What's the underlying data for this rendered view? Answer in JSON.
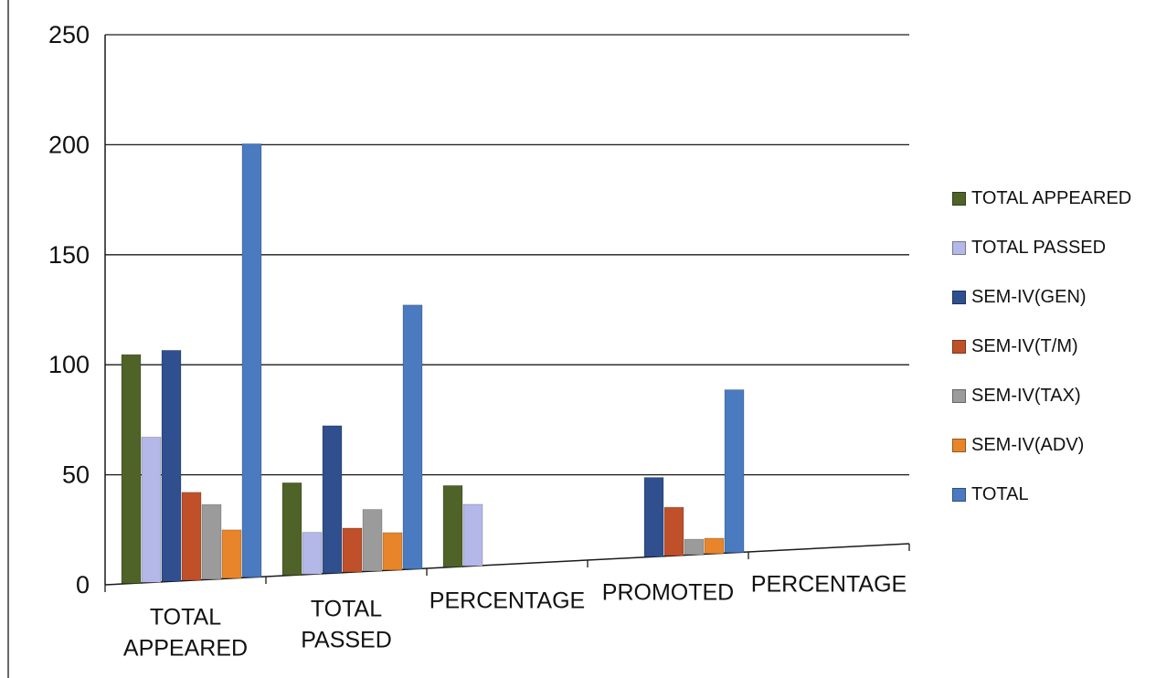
{
  "chart_data": {
    "type": "bar",
    "title": "",
    "xlabel": "",
    "ylabel": "",
    "ylim": [
      0,
      250
    ],
    "yticks": [
      "0",
      "50",
      "100",
      "150",
      "200",
      "250"
    ],
    "grid": true,
    "legend_position": "right",
    "categories": [
      [
        "TOTAL",
        "APPEARED"
      ],
      [
        "TOTAL",
        "PASSED"
      ],
      [
        "PERCENTAGE"
      ],
      [
        "PROMOTED"
      ],
      [
        "PERCENTAGE"
      ]
    ],
    "series": [
      {
        "name": "TOTAL APPEARED",
        "color": "#4f6228",
        "values": [
          104,
          42,
          37,
          0,
          0
        ]
      },
      {
        "name": "TOTAL PASSED",
        "color": "#b4b8e8",
        "values": [
          66,
          19,
          28,
          0,
          0
        ]
      },
      {
        "name": "SEM-IV(GEN)",
        "color": "#2f4f8f",
        "values": [
          105,
          67,
          0,
          36,
          0
        ]
      },
      {
        "name": "SEM-IV(T/M)",
        "color": "#c0502a",
        "values": [
          40,
          20,
          0,
          22,
          0
        ]
      },
      {
        "name": "SEM-IV(TAX)",
        "color": "#9b9b9b",
        "values": [
          34,
          28,
          0,
          7,
          0
        ]
      },
      {
        "name": "SEM-IV(ADV)",
        "color": "#e8852a",
        "values": [
          22,
          17,
          0,
          7,
          0
        ]
      },
      {
        "name": "TOTAL",
        "color": "#4a7ac0",
        "values": [
          197,
          120,
          0,
          74,
          0
        ]
      }
    ]
  }
}
